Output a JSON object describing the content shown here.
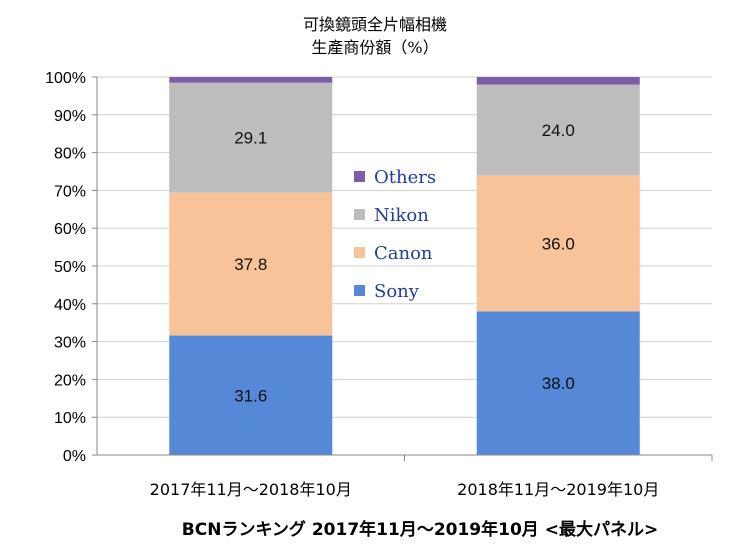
{
  "chart_data": {
    "type": "bar",
    "stacked": true,
    "title": "可換鏡頭全片幅相機",
    "subtitle": "生產商份額（%）",
    "categories": [
      "2017年11月〜2018年10月",
      "2018年11月〜2019年10月"
    ],
    "series": [
      {
        "name": "Sony",
        "values": [
          31.6,
          38.0
        ],
        "labels": [
          "31.6",
          "38.0"
        ],
        "color": "#5588d6"
      },
      {
        "name": "Canon",
        "values": [
          37.8,
          36.0
        ],
        "labels": [
          "37.8",
          "36.0"
        ],
        "color": "#f8c398"
      },
      {
        "name": "Nikon",
        "values": [
          29.1,
          24.0
        ],
        "labels": [
          "29.1",
          "24.0"
        ],
        "color": "#bdbdbd"
      },
      {
        "name": "Others",
        "values": [
          1.5,
          2.0
        ],
        "labels": [
          "",
          ""
        ],
        "color": "#7b5ea6"
      }
    ],
    "y_ticks": [
      "0%",
      "10%",
      "20%",
      "30%",
      "40%",
      "50%",
      "60%",
      "70%",
      "80%",
      "90%",
      "100%"
    ],
    "ylim": [
      0,
      100
    ],
    "grid": true,
    "legend": {
      "placement": "center",
      "order": [
        "Others",
        "Nikon",
        "Canon",
        "Sony"
      ]
    },
    "source": "BCNランキング 2017年11月〜2019年10月 <最大パネル>"
  }
}
